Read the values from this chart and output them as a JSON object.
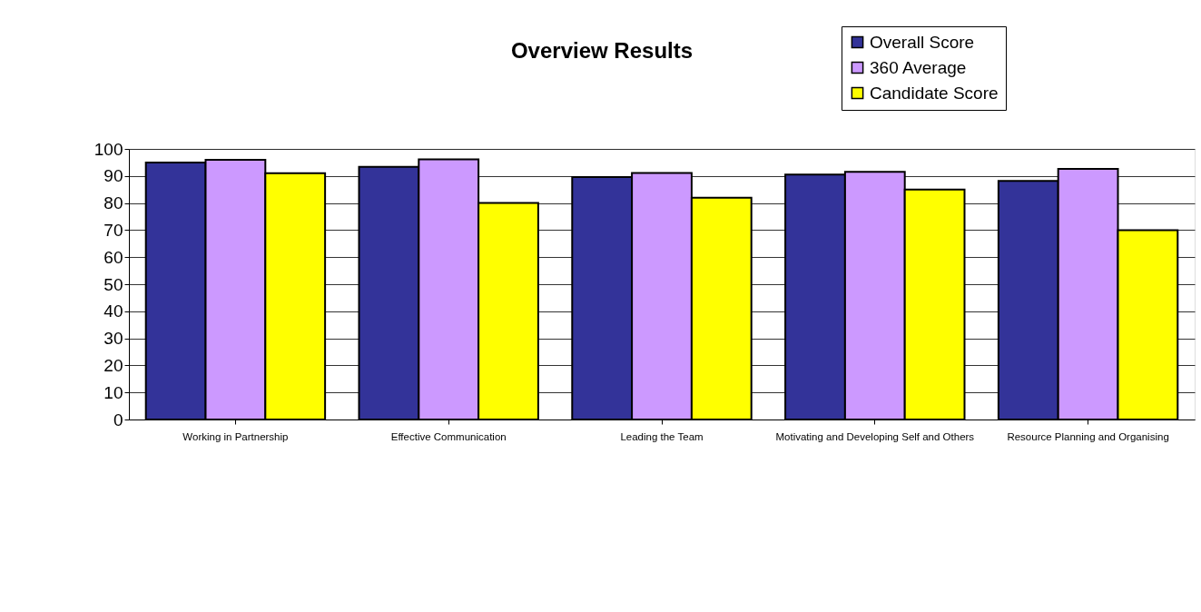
{
  "chart_data": {
    "type": "bar",
    "title": "Overview Results",
    "categories": [
      "Working in Partnership",
      "Effective Communication",
      "Leading the Team",
      "Motivating and Developing Self and Others",
      "Resource Planning and Organising"
    ],
    "series": [
      {
        "name": "Overall Score",
        "color": "#333399",
        "values": [
          95,
          93.4,
          89.6,
          90.5,
          88.2
        ]
      },
      {
        "name": "360 Average",
        "color": "#cc99ff",
        "values": [
          96,
          96.1,
          91.1,
          91.5,
          92.6
        ]
      },
      {
        "name": "Candidate Score",
        "color": "#ffff00",
        "values": [
          91,
          80,
          82,
          85,
          70
        ]
      }
    ],
    "ylim": [
      0,
      100
    ],
    "yticks": [
      0,
      10,
      20,
      30,
      40,
      50,
      60,
      70,
      80,
      90,
      100
    ],
    "grid": "y",
    "legend": "top right"
  }
}
